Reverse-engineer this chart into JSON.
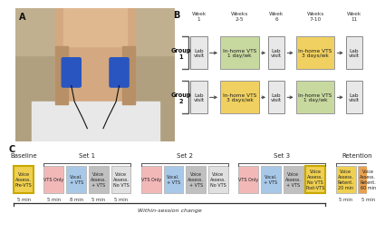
{
  "bg_color": "#ffffff",
  "week_labels": [
    "Week\n1",
    "Weeks\n2-5",
    "Week\n6",
    "Weeks\n7-10",
    "Week\n11"
  ],
  "group1_boxes": [
    {
      "text": "Lab\nvisit",
      "color": "#e8e8e8",
      "border": "#888888",
      "wide": false
    },
    {
      "text": "In-home VTS\n1 day/wk",
      "color": "#c8d9a0",
      "border": "#999999",
      "wide": true
    },
    {
      "text": "Lab\nvisit",
      "color": "#e8e8e8",
      "border": "#888888",
      "wide": false
    },
    {
      "text": "In-home VTS\n3 days/wk",
      "color": "#f0d060",
      "border": "#999999",
      "wide": true
    },
    {
      "text": "Lab\nvisit",
      "color": "#e8e8e8",
      "border": "#888888",
      "wide": false
    }
  ],
  "group2_boxes": [
    {
      "text": "Lab\nvisit",
      "color": "#e8e8e8",
      "border": "#888888",
      "wide": false
    },
    {
      "text": "In-home VTS\n3 days/wk",
      "color": "#f0d060",
      "border": "#999999",
      "wide": true
    },
    {
      "text": "Lab\nvisit",
      "color": "#e8e8e8",
      "border": "#888888",
      "wide": false
    },
    {
      "text": "In-home VTS\n1 day/wk",
      "color": "#c8d9a0",
      "border": "#999999",
      "wide": true
    },
    {
      "text": "Lab\nvisit",
      "color": "#e8e8e8",
      "border": "#888888",
      "wide": false
    }
  ],
  "c_sections": [
    {
      "name": "Baseline",
      "has_bracket": false,
      "boxes": [
        {
          "text": "Voice\nAssess.\nPre-VTS",
          "color": "#f0d050",
          "border": "#c8a800",
          "lw": 1.5
        }
      ]
    },
    {
      "name": "Set 1",
      "has_bracket": true,
      "boxes": [
        {
          "text": "VTS Only",
          "color": "#f2b8b8",
          "border": "#bbbbbb",
          "lw": 0.7
        },
        {
          "text": "Vocal.\n+ VTS",
          "color": "#a8c8e8",
          "border": "#bbbbbb",
          "lw": 0.7
        },
        {
          "text": "Voice\nAssess.\n+ VTS",
          "color": "#c0c0c0",
          "border": "#bbbbbb",
          "lw": 0.7
        },
        {
          "text": "Voice\nAssess.\nNo VTS",
          "color": "#e0e0e0",
          "border": "#bbbbbb",
          "lw": 0.7
        }
      ]
    },
    {
      "name": "Set 2",
      "has_bracket": true,
      "boxes": [
        {
          "text": "VTS Only",
          "color": "#f2b8b8",
          "border": "#bbbbbb",
          "lw": 0.7
        },
        {
          "text": "Vocal.\n+ VTS",
          "color": "#a8c8e8",
          "border": "#bbbbbb",
          "lw": 0.7
        },
        {
          "text": "Voice\nAssess.\n+ VTS",
          "color": "#c0c0c0",
          "border": "#bbbbbb",
          "lw": 0.7
        },
        {
          "text": "Voice\nAssess.\nNo VTS",
          "color": "#e0e0e0",
          "border": "#bbbbbb",
          "lw": 0.7
        }
      ]
    },
    {
      "name": "Set 3",
      "has_bracket": true,
      "boxes": [
        {
          "text": "VTS Only",
          "color": "#f2b8b8",
          "border": "#bbbbbb",
          "lw": 0.7
        },
        {
          "text": "Vocal.\n+ VTS",
          "color": "#a8c8e8",
          "border": "#bbbbbb",
          "lw": 0.7
        },
        {
          "text": "Voice\nAssess.\n+ VTS",
          "color": "#c0c0c0",
          "border": "#bbbbbb",
          "lw": 0.7
        },
        {
          "text": "Voice\nAssess.\nNo VTS\nPost-VTS",
          "color": "#f0d050",
          "border": "#c8a800",
          "lw": 1.5
        }
      ]
    },
    {
      "name": "Retention",
      "has_bracket": true,
      "boxes": [
        {
          "text": "Voice\nAssess.\nRetent.\n20 min",
          "color": "#f0d050",
          "border": "#bbbbbb",
          "lw": 0.7
        },
        {
          "text": "Voice\nAssess.\nRetent.\n60 min",
          "color": "#e8a050",
          "border": "#bbbbbb",
          "lw": 0.7
        }
      ]
    }
  ],
  "within_session_label": "Within-session change"
}
